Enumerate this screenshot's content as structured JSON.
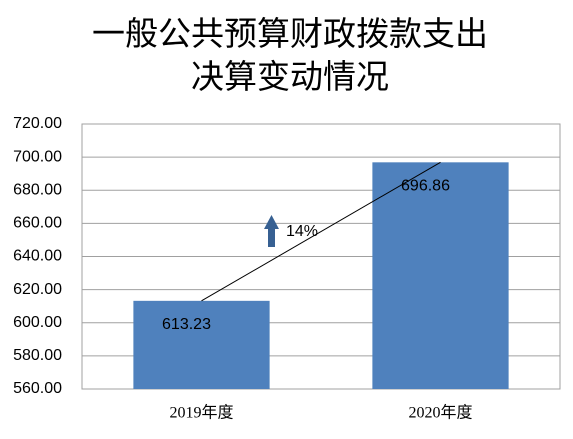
{
  "chart_data": {
    "type": "bar",
    "title": [
      "一般公共预算财政拨款支出",
      "决算变动情况"
    ],
    "categories": [
      "2019年度",
      "2020年度"
    ],
    "values": [
      613.23,
      696.86
    ],
    "color": "#4f81bd",
    "ylim": [
      560,
      720
    ],
    "yticks": [
      {
        "value": 560,
        "label": "560.00"
      },
      {
        "value": 580,
        "label": "580.00"
      },
      {
        "value": 600,
        "label": "600.00"
      },
      {
        "value": 620,
        "label": "620.00"
      },
      {
        "value": 640,
        "label": "640.00"
      },
      {
        "value": 660,
        "label": "660.00"
      },
      {
        "value": 680,
        "label": "680.00"
      },
      {
        "value": 700,
        "label": "700.00"
      },
      {
        "value": 720,
        "label": "720.00"
      }
    ],
    "grid": true,
    "annotations": [
      "14%"
    ]
  }
}
